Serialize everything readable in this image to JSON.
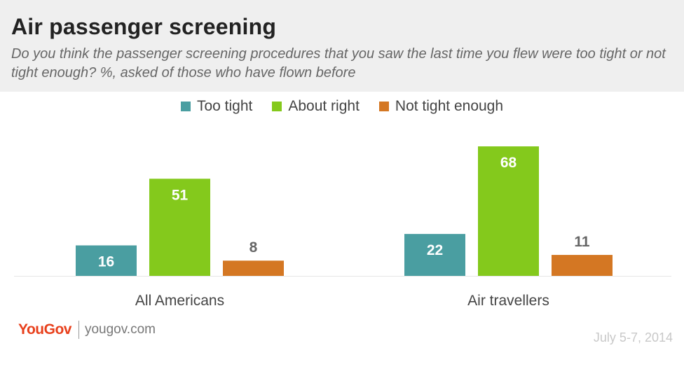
{
  "header": {
    "title": "Air passenger screening",
    "subtitle": "Do you think the passenger screening procedures that you saw the last time you flew were too tight or not tight enough? %, asked of those who have flown before"
  },
  "footer": {
    "brand": "YouGov",
    "url": "yougov.com",
    "date": "July 5-7, 2014"
  },
  "colors": {
    "too_tight": "#4a9ea1",
    "about_right": "#84c91c",
    "not_tight_enough": "#d47723",
    "label_dark": "#666666",
    "label_light": "#ffffff"
  },
  "chart_data": {
    "type": "bar",
    "title": "Air passenger screening",
    "categories": [
      "All Americans",
      "Air travellers"
    ],
    "series": [
      {
        "name": "Too tight",
        "color": "#4a9ea1",
        "values": [
          16,
          22
        ]
      },
      {
        "name": "About right",
        "color": "#84c91c",
        "values": [
          51,
          68
        ]
      },
      {
        "name": "Not tight enough",
        "color": "#d47723",
        "values": [
          8,
          11
        ]
      }
    ],
    "ylim": [
      0,
      75
    ],
    "grid": false,
    "legend": "top-center",
    "data_labels": true
  }
}
